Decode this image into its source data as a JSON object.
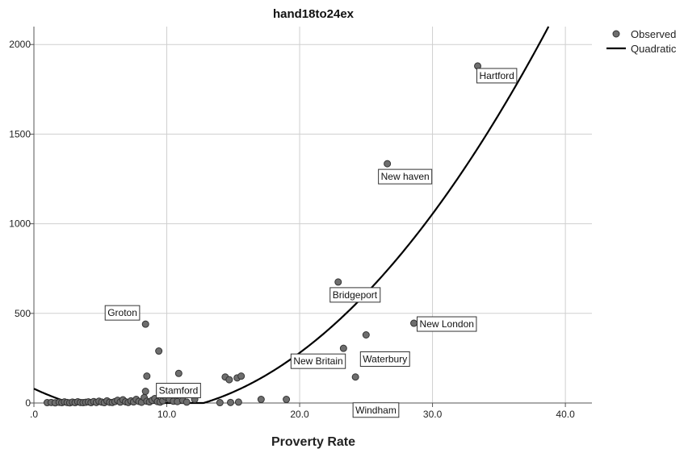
{
  "chart_data": {
    "type": "scatter",
    "title": "hand18to24ex",
    "xlabel": "Proverty Rate",
    "ylabel": "",
    "xlim": [
      0,
      42
    ],
    "ylim": [
      0,
      2100
    ],
    "x_ticks": [
      0,
      10,
      20,
      30,
      40
    ],
    "x_tick_labels": [
      ".0",
      "10.0",
      "20.0",
      "30.0",
      "40.0"
    ],
    "y_ticks": [
      0,
      500,
      1000,
      1500,
      2000
    ],
    "y_tick_labels": [
      "0",
      "500",
      "1000",
      "1500",
      "2000"
    ],
    "grid": true,
    "legend_position": "top-right",
    "legend": [
      {
        "label": "Observed",
        "kind": "marker"
      },
      {
        "label": "Quadratic",
        "kind": "line"
      }
    ],
    "colors": {
      "marker_fill": "#6e6e6e",
      "marker_stroke": "#333333",
      "line": "#000000",
      "grid": "#cfcfcf",
      "axis": "#555555"
    },
    "quadratic": {
      "intercept": 80,
      "linear": -35,
      "quadratic": 2.25
    },
    "points": [
      [
        1.0,
        2
      ],
      [
        1.3,
        3
      ],
      [
        1.6,
        1
      ],
      [
        1.9,
        4
      ],
      [
        2.1,
        2
      ],
      [
        2.3,
        6
      ],
      [
        2.5,
        3
      ],
      [
        2.7,
        1
      ],
      [
        2.9,
        5
      ],
      [
        3.1,
        2
      ],
      [
        3.3,
        7
      ],
      [
        3.5,
        3
      ],
      [
        3.7,
        2
      ],
      [
        3.9,
        4
      ],
      [
        4.1,
        6
      ],
      [
        4.3,
        2
      ],
      [
        4.5,
        8
      ],
      [
        4.7,
        3
      ],
      [
        4.9,
        10
      ],
      [
        5.1,
        5
      ],
      [
        5.3,
        2
      ],
      [
        5.5,
        12
      ],
      [
        5.7,
        4
      ],
      [
        5.9,
        3
      ],
      [
        6.1,
        8
      ],
      [
        6.3,
        15
      ],
      [
        6.5,
        5
      ],
      [
        6.7,
        18
      ],
      [
        6.9,
        7
      ],
      [
        7.1,
        3
      ],
      [
        7.3,
        12
      ],
      [
        7.5,
        6
      ],
      [
        7.7,
        20
      ],
      [
        7.9,
        9
      ],
      [
        8.1,
        4
      ],
      [
        8.3,
        30
      ],
      [
        8.5,
        10
      ],
      [
        8.7,
        6
      ],
      [
        8.9,
        15
      ],
      [
        9.1,
        25
      ],
      [
        9.3,
        8
      ],
      [
        9.5,
        5
      ],
      [
        9.7,
        12
      ],
      [
        9.9,
        35
      ],
      [
        10.2,
        20
      ],
      [
        10.5,
        10
      ],
      [
        10.8,
        8
      ],
      [
        11.2,
        15
      ],
      [
        11.5,
        5
      ],
      [
        11.8,
        90
      ],
      [
        12.1,
        20
      ],
      [
        8.4,
        65
      ],
      [
        8.5,
        150
      ],
      [
        10.3,
        90
      ],
      [
        10.6,
        50
      ],
      [
        10.9,
        165
      ],
      [
        12.0,
        90
      ],
      [
        9.4,
        290
      ],
      [
        14.0,
        2
      ],
      [
        14.4,
        145
      ],
      [
        14.7,
        130
      ],
      [
        15.3,
        140
      ],
      [
        15.6,
        150
      ],
      [
        14.8,
        3
      ],
      [
        15.4,
        5
      ],
      [
        17.1,
        20
      ],
      [
        19.0,
        20
      ],
      [
        8.4,
        440
      ],
      [
        22.9,
        675
      ],
      [
        23.3,
        305
      ],
      [
        24.2,
        145
      ],
      [
        25.0,
        380
      ],
      [
        26.6,
        1335
      ],
      [
        28.6,
        445
      ],
      [
        33.4,
        1880
      ]
    ],
    "annotations": [
      {
        "label": "Hartford",
        "x": 33.4,
        "y": 1880
      },
      {
        "label": "New haven",
        "x": 26.6,
        "y": 1335
      },
      {
        "label": "Bridgeport",
        "x": 22.9,
        "y": 675
      },
      {
        "label": "New London",
        "x": 28.6,
        "y": 445
      },
      {
        "label": "Waterbury",
        "x": 25.0,
        "y": 380
      },
      {
        "label": "New Britain",
        "x": 23.3,
        "y": 305
      },
      {
        "label": "Windham",
        "x": 24.2,
        "y": 145
      },
      {
        "label": "Groton",
        "x": 8.4,
        "y": 440
      },
      {
        "label": "Stamford",
        "x": 9.4,
        "y": 290
      }
    ]
  }
}
